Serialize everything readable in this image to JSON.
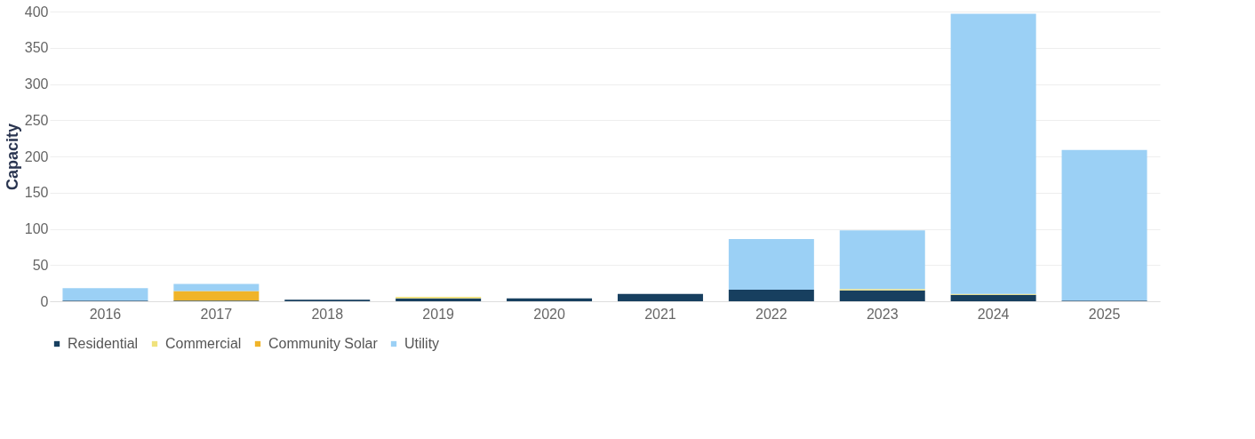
{
  "chart_data": {
    "type": "bar",
    "stacked": true,
    "ylabel": "Capacity",
    "categories": [
      "2016",
      "2017",
      "2018",
      "2019",
      "2020",
      "2021",
      "2022",
      "2023",
      "2024",
      "2025"
    ],
    "series": [
      {
        "name": "Residential",
        "color": "#173f5f",
        "values": [
          1,
          1,
          2,
          4,
          4,
          10,
          16,
          15,
          9,
          1
        ]
      },
      {
        "name": "Commercial",
        "color": "#f0e27c",
        "values": [
          0,
          0,
          0,
          2,
          0,
          0,
          0,
          2,
          1,
          0
        ]
      },
      {
        "name": "Community Solar",
        "color": "#f0b429",
        "values": [
          0,
          13,
          0,
          0,
          0,
          0,
          0,
          0,
          0,
          0
        ]
      },
      {
        "name": "Utility",
        "color": "#9bd0f5",
        "values": [
          17,
          10,
          0,
          0,
          0,
          0,
          70,
          81,
          387,
          208
        ]
      }
    ],
    "ylim": [
      0,
      400
    ],
    "yticks": [
      0,
      50,
      100,
      150,
      200,
      250,
      300,
      350,
      400
    ],
    "grid": "y",
    "legend": "bottom"
  }
}
